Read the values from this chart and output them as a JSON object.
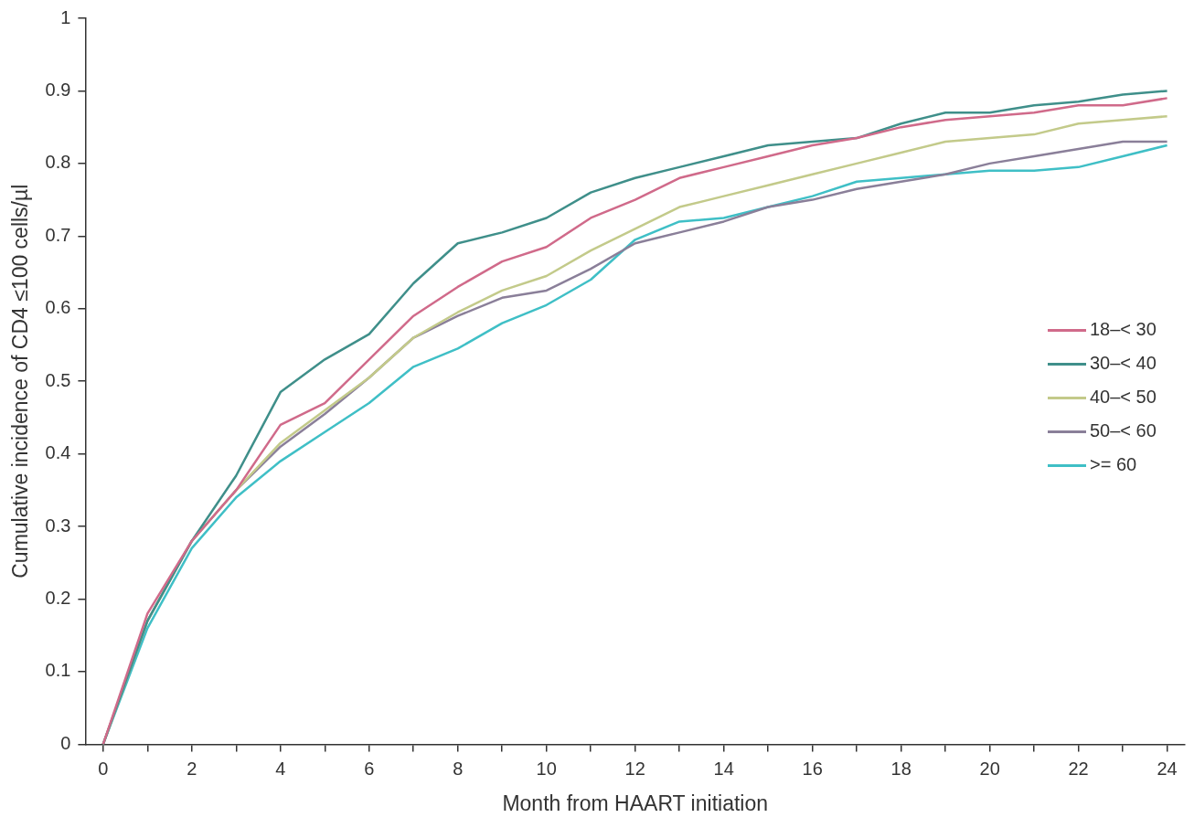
{
  "chart_data": {
    "type": "line",
    "xlabel": "Month from HAART initiation",
    "ylabel": "Cumulative incidence of CD4 ≤100 cells/µl",
    "x": [
      0,
      1,
      2,
      3,
      4,
      5,
      6,
      7,
      8,
      9,
      10,
      11,
      12,
      13,
      14,
      15,
      16,
      17,
      18,
      19,
      20,
      21,
      22,
      23,
      24
    ],
    "series": [
      {
        "name": "18–< 30",
        "color": "#d06a8a",
        "values": [
          0,
          0.18,
          0.28,
          0.35,
          0.44,
          0.47,
          0.53,
          0.59,
          0.63,
          0.665,
          0.685,
          0.725,
          0.75,
          0.78,
          0.795,
          0.81,
          0.825,
          0.835,
          0.85,
          0.86,
          0.865,
          0.87,
          0.88,
          0.88,
          0.89
        ]
      },
      {
        "name": "30–< 40",
        "color": "#3f8f8a",
        "values": [
          0,
          0.17,
          0.28,
          0.37,
          0.485,
          0.53,
          0.565,
          0.635,
          0.69,
          0.705,
          0.725,
          0.76,
          0.78,
          0.795,
          0.81,
          0.825,
          0.83,
          0.835,
          0.855,
          0.87,
          0.87,
          0.88,
          0.885,
          0.895,
          0.9
        ]
      },
      {
        "name": "40–< 50",
        "color": "#c3ca8a",
        "values": [
          0,
          0.17,
          0.28,
          0.35,
          0.415,
          0.46,
          0.505,
          0.56,
          0.595,
          0.625,
          0.645,
          0.68,
          0.71,
          0.74,
          0.755,
          0.77,
          0.785,
          0.8,
          0.815,
          0.83,
          0.835,
          0.84,
          0.855,
          0.86,
          0.865
        ]
      },
      {
        "name": "50–< 60",
        "color": "#8a7f99",
        "values": [
          0,
          0.17,
          0.28,
          0.35,
          0.41,
          0.455,
          0.505,
          0.56,
          0.59,
          0.615,
          0.625,
          0.655,
          0.69,
          0.705,
          0.72,
          0.74,
          0.75,
          0.765,
          0.775,
          0.785,
          0.8,
          0.81,
          0.82,
          0.83,
          0.83
        ]
      },
      {
        "name": ">= 60",
        "color": "#3fbfc6",
        "values": [
          0,
          0.16,
          0.27,
          0.34,
          0.39,
          0.43,
          0.47,
          0.52,
          0.545,
          0.58,
          0.605,
          0.64,
          0.695,
          0.72,
          0.725,
          0.74,
          0.755,
          0.775,
          0.78,
          0.785,
          0.79,
          0.79,
          0.795,
          0.81,
          0.825
        ]
      }
    ],
    "xlim": [
      -0.4,
      24.4
    ],
    "xticks": [
      0,
      {
        "value": 1,
        "label": null
      },
      2,
      {
        "value": 3,
        "label": null
      },
      4,
      {
        "value": 5,
        "label": null
      },
      6,
      {
        "value": 7,
        "label": null
      },
      8,
      {
        "value": 9,
        "label": null
      },
      10,
      {
        "value": 11,
        "label": null
      },
      12,
      {
        "value": 13,
        "label": null
      },
      14,
      {
        "value": 15,
        "label": null
      },
      16,
      {
        "value": 17,
        "label": null
      },
      18,
      {
        "value": 19,
        "label": null
      },
      20,
      {
        "value": 21,
        "label": null
      },
      22,
      {
        "value": 23,
        "label": null
      },
      24
    ],
    "ylim": [
      0,
      1
    ],
    "yticks": [
      0,
      0.1,
      0.2,
      0.3,
      0.4,
      0.5,
      0.6,
      0.7,
      0.8,
      0.9,
      1
    ],
    "legend": "right",
    "marker": "none",
    "line_style": "solid",
    "grid": false
  }
}
